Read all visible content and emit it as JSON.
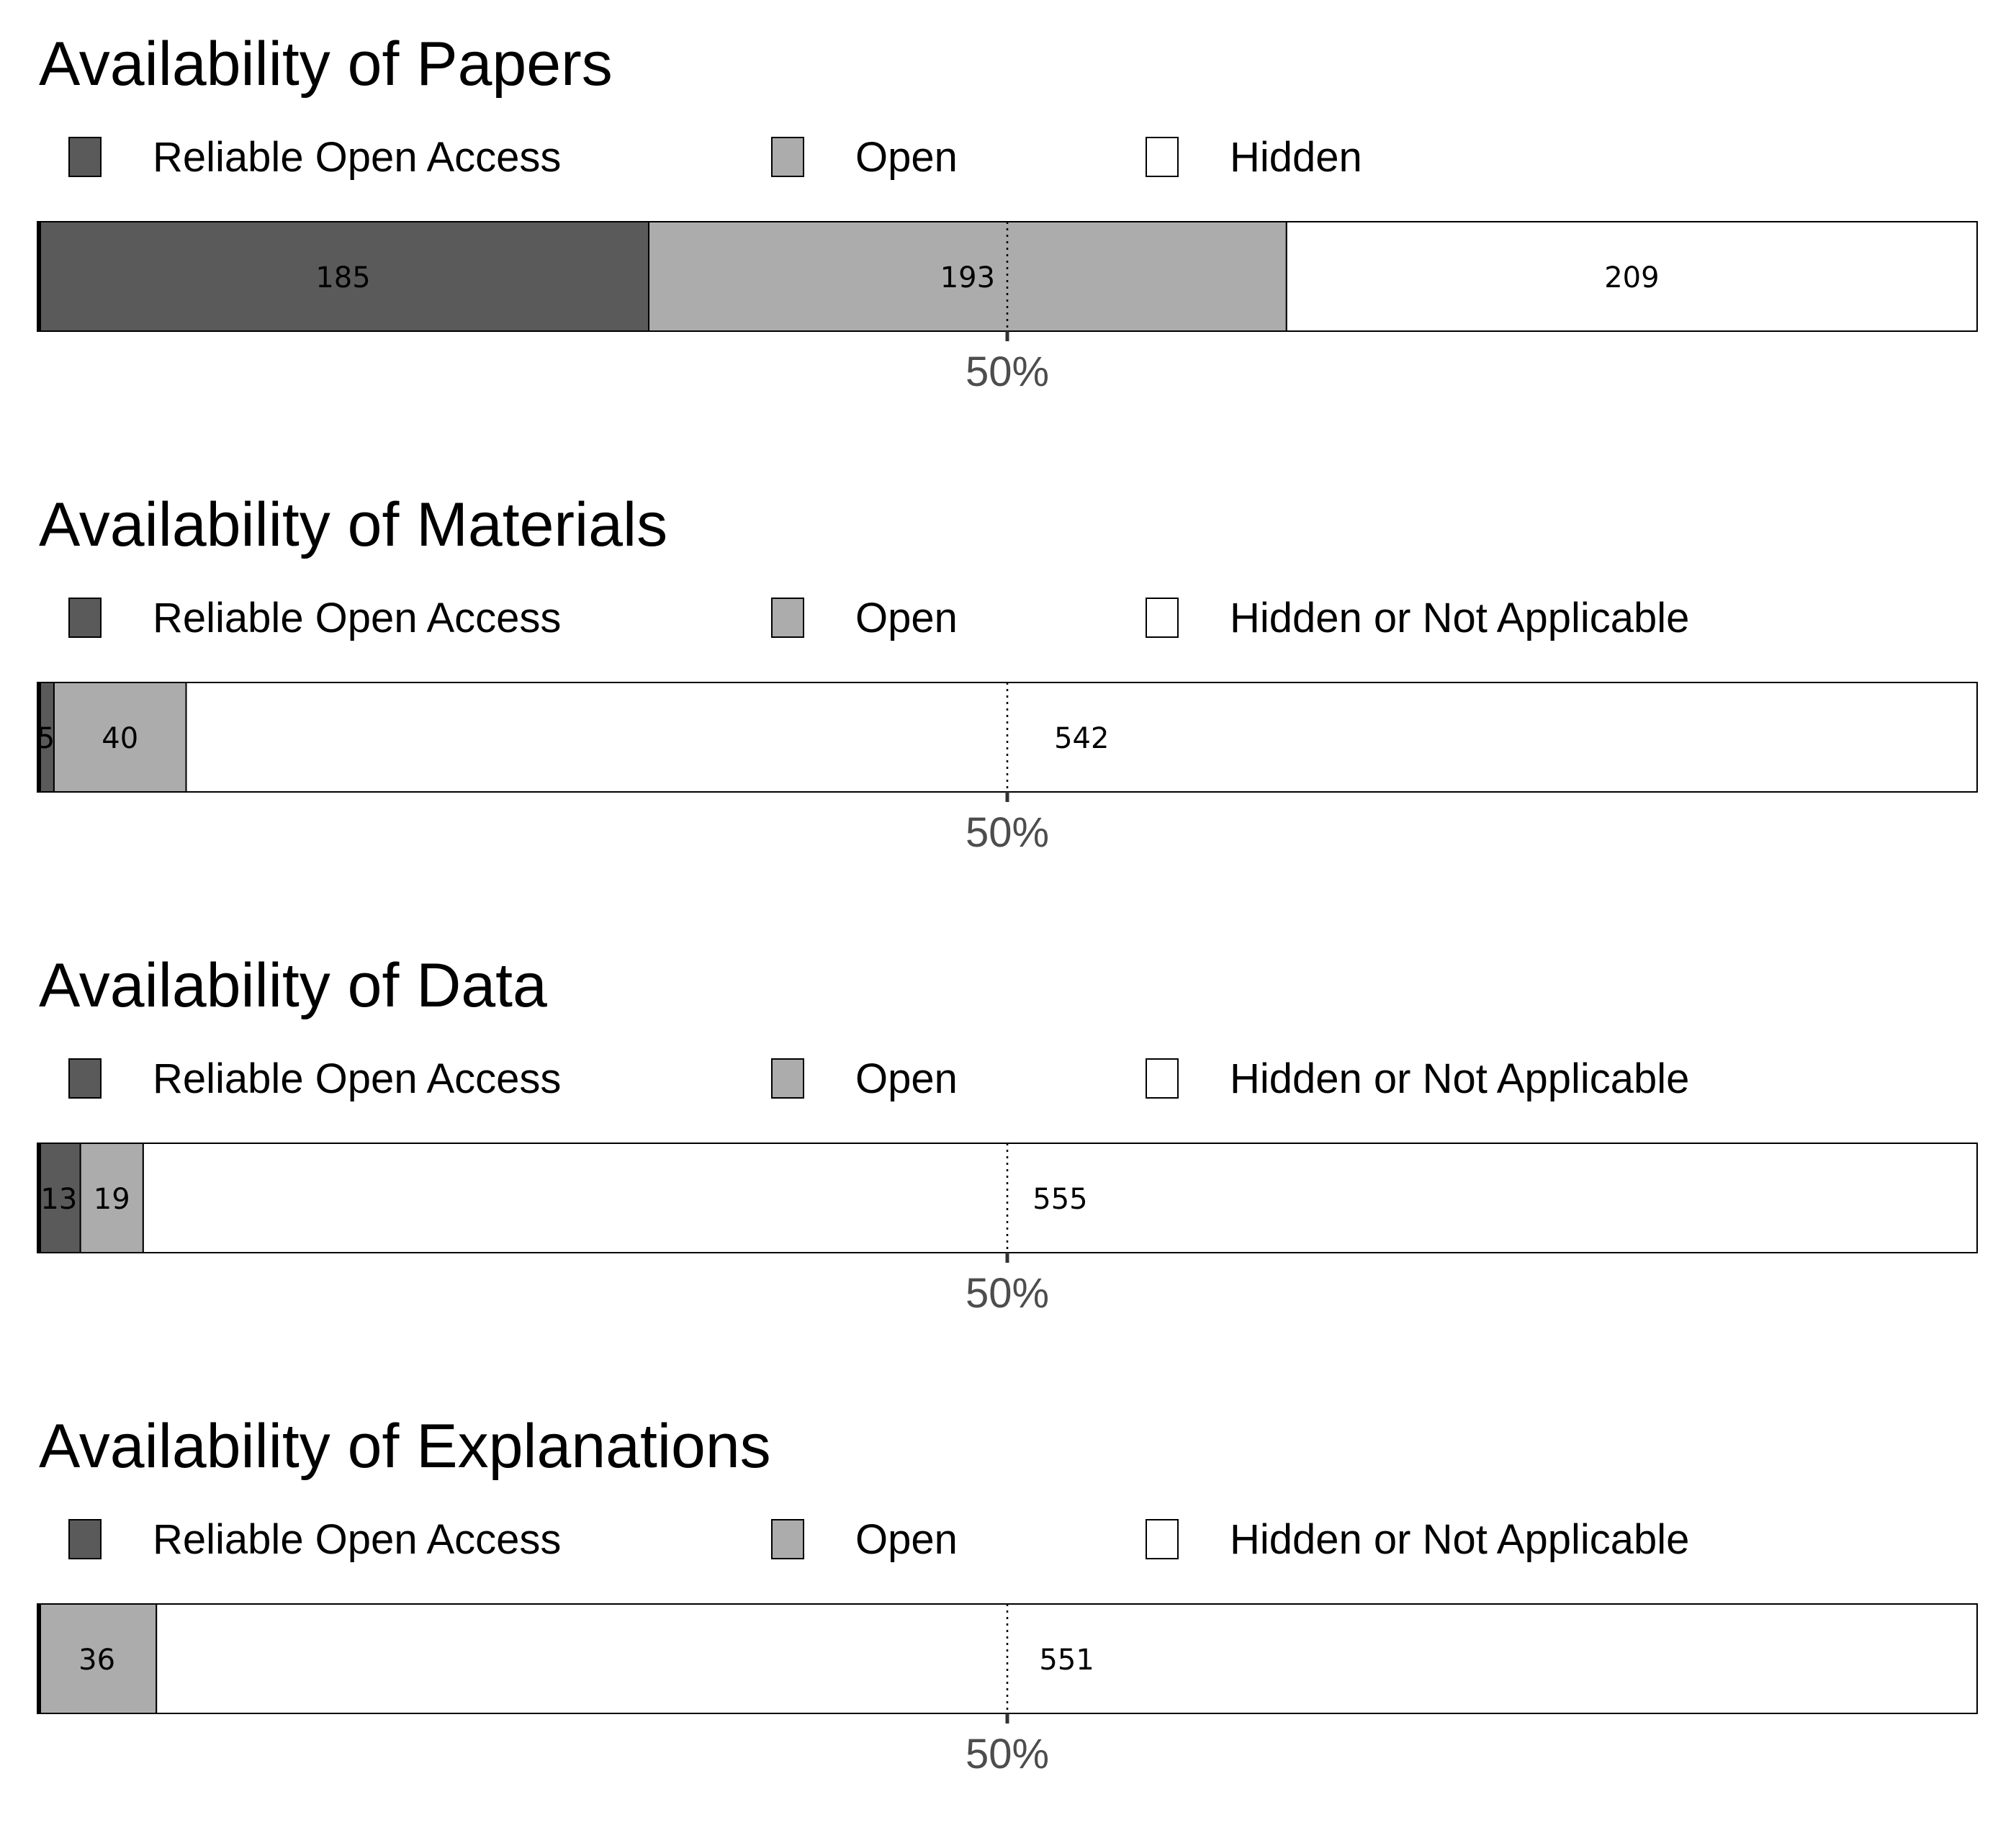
{
  "colors": {
    "reliable_open_access": "#5a5a5a",
    "open": "#acacac",
    "hidden": "#ffffff",
    "outline": "#000000",
    "tick_text": "#4d4d4d"
  },
  "chart_data": [
    {
      "type": "bar",
      "orientation": "horizontal",
      "stacked": true,
      "title": "Availability of Papers",
      "legend_position": "top",
      "series": [
        {
          "name": "Reliable Open Access",
          "color": "#5a5a5a",
          "value": 185
        },
        {
          "name": "Open",
          "color": "#acacac",
          "value": 193
        },
        {
          "name": "Hidden",
          "color": "#ffffff",
          "value": 209
        }
      ],
      "reference_line": {
        "value_percent": 50,
        "style": "dotted"
      },
      "tick_label": "50%"
    },
    {
      "type": "bar",
      "orientation": "horizontal",
      "stacked": true,
      "title": "Availability of Materials",
      "legend_position": "top",
      "series": [
        {
          "name": "Reliable Open Access",
          "color": "#5a5a5a",
          "value": 5
        },
        {
          "name": "Open",
          "color": "#acacac",
          "value": 40
        },
        {
          "name": "Hidden or Not Applicable",
          "color": "#ffffff",
          "value": 542
        }
      ],
      "reference_line": {
        "value_percent": 50,
        "style": "dotted"
      },
      "tick_label": "50%"
    },
    {
      "type": "bar",
      "orientation": "horizontal",
      "stacked": true,
      "title": "Availability of Data",
      "legend_position": "top",
      "series": [
        {
          "name": "Reliable Open Access",
          "color": "#5a5a5a",
          "value": 13
        },
        {
          "name": "Open",
          "color": "#acacac",
          "value": 19
        },
        {
          "name": "Hidden or Not Applicable",
          "color": "#ffffff",
          "value": 555
        }
      ],
      "reference_line": {
        "value_percent": 50,
        "style": "dotted"
      },
      "tick_label": "50%"
    },
    {
      "type": "bar",
      "orientation": "horizontal",
      "stacked": true,
      "title": "Availability of Explanations",
      "legend_position": "top",
      "series": [
        {
          "name": "Reliable Open Access",
          "color": "#5a5a5a",
          "value": 0
        },
        {
          "name": "Open",
          "color": "#acacac",
          "value": 36
        },
        {
          "name": "Hidden or Not Applicable",
          "color": "#ffffff",
          "value": 551
        }
      ],
      "reference_line": {
        "value_percent": 50,
        "style": "dotted"
      },
      "tick_label": "50%"
    }
  ]
}
